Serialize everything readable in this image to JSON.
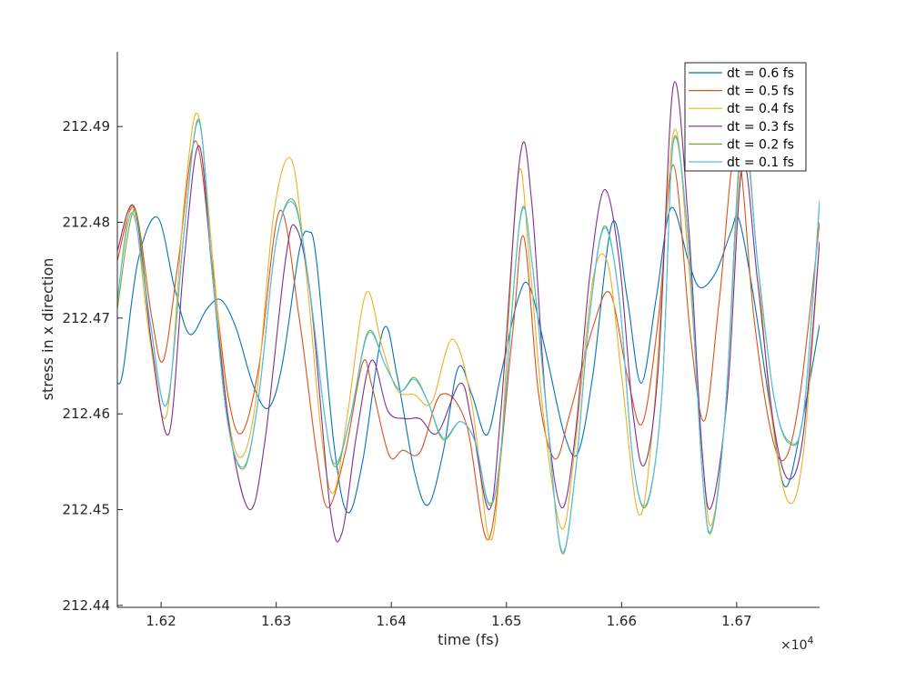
{
  "chart_data": {
    "type": "line",
    "title": "",
    "xlabel": "time (fs)",
    "ylabel": "stress in x direction",
    "xlim": [
      16162,
      16772
    ],
    "ylim": [
      212.4398,
      212.4978
    ],
    "x_ticks": [
      16200,
      16300,
      16400,
      16500,
      16600,
      16700
    ],
    "x_tick_labels": [
      "1.62",
      "1.63",
      "1.64",
      "1.65",
      "1.66",
      "1.67"
    ],
    "x_exponent_label": "×10",
    "x_exponent_power": "4",
    "y_ticks": [
      212.44,
      212.45,
      212.46,
      212.47,
      212.48,
      212.49
    ],
    "y_tick_labels": [
      "212.44",
      "212.45",
      "212.46",
      "212.47",
      "212.48",
      "212.49"
    ],
    "grid": false,
    "legend_position": "top-right",
    "series": [
      {
        "name": "dt = 0.6 fs",
        "color": "#0072BD",
        "points": [
          [
            16162,
            212.4632
          ],
          [
            16167,
            212.4645
          ],
          [
            16180,
            212.476
          ],
          [
            16197,
            212.4805
          ],
          [
            16212,
            212.473
          ],
          [
            16225,
            212.4683
          ],
          [
            16240,
            212.471
          ],
          [
            16252,
            212.4719
          ],
          [
            16265,
            212.469
          ],
          [
            16280,
            212.463
          ],
          [
            16293,
            212.4606
          ],
          [
            16305,
            212.465
          ],
          [
            16320,
            212.477
          ],
          [
            16328,
            212.479
          ],
          [
            16335,
            212.476
          ],
          [
            16350,
            212.457
          ],
          [
            16362,
            212.4497
          ],
          [
            16375,
            212.455
          ],
          [
            16393,
            212.4688
          ],
          [
            16405,
            212.464
          ],
          [
            16420,
            212.454
          ],
          [
            16432,
            212.4505
          ],
          [
            16445,
            212.456
          ],
          [
            16458,
            212.4648
          ],
          [
            16470,
            212.462
          ],
          [
            16483,
            212.4578
          ],
          [
            16495,
            212.464
          ],
          [
            16510,
            212.472
          ],
          [
            16520,
            212.4733
          ],
          [
            16535,
            212.466
          ],
          [
            16550,
            212.458
          ],
          [
            16562,
            212.4559
          ],
          [
            16575,
            212.464
          ],
          [
            16592,
            212.48
          ],
          [
            16605,
            212.472
          ],
          [
            16617,
            212.4632
          ],
          [
            16630,
            212.472
          ],
          [
            16643,
            212.4815
          ],
          [
            16658,
            212.476
          ],
          [
            16668,
            212.4732
          ],
          [
            16682,
            212.4748
          ],
          [
            16695,
            212.479
          ],
          [
            16702,
            212.4803
          ],
          [
            16715,
            212.472
          ],
          [
            16730,
            212.46
          ],
          [
            16742,
            212.4524
          ],
          [
            16755,
            212.458
          ],
          [
            16772,
            212.4693
          ]
        ]
      },
      {
        "name": "dt = 0.5 fs",
        "color": "#D95319",
        "points": [
          [
            16162,
            212.476
          ],
          [
            16177,
            212.4815
          ],
          [
            16192,
            212.47
          ],
          [
            16202,
            212.4656
          ],
          [
            16215,
            212.476
          ],
          [
            16230,
            212.4885
          ],
          [
            16245,
            212.475
          ],
          [
            16258,
            212.462
          ],
          [
            16270,
            212.458
          ],
          [
            16285,
            212.465
          ],
          [
            16303,
            212.4812
          ],
          [
            16320,
            212.47
          ],
          [
            16335,
            212.456
          ],
          [
            16345,
            212.4502
          ],
          [
            16360,
            212.456
          ],
          [
            16375,
            212.4653
          ],
          [
            16383,
            212.463
          ],
          [
            16398,
            212.4557
          ],
          [
            16410,
            212.4562
          ],
          [
            16425,
            212.456
          ],
          [
            16443,
            212.462
          ],
          [
            16465,
            212.459
          ],
          [
            16485,
            212.447
          ],
          [
            16505,
            212.468
          ],
          [
            16515,
            212.4785
          ],
          [
            16528,
            212.462
          ],
          [
            16542,
            212.4553
          ],
          [
            16555,
            212.46
          ],
          [
            16575,
            212.469
          ],
          [
            16590,
            212.4726
          ],
          [
            16605,
            212.464
          ],
          [
            16618,
            212.459
          ],
          [
            16632,
            212.47
          ],
          [
            16645,
            212.486
          ],
          [
            16660,
            212.468
          ],
          [
            16672,
            212.4593
          ],
          [
            16685,
            212.472
          ],
          [
            16700,
            212.488
          ],
          [
            16715,
            212.47
          ],
          [
            16730,
            212.458
          ],
          [
            16742,
            212.4553
          ],
          [
            16755,
            212.462
          ],
          [
            16772,
            212.48
          ]
        ]
      },
      {
        "name": "dt = 0.4 fs",
        "color": "#EDB120",
        "points": [
          [
            16162,
            212.4718
          ],
          [
            16175,
            212.4817
          ],
          [
            16190,
            212.468
          ],
          [
            16205,
            212.46
          ],
          [
            16220,
            212.482
          ],
          [
            16232,
            212.4913
          ],
          [
            16245,
            212.476
          ],
          [
            16258,
            212.46
          ],
          [
            16270,
            212.4555
          ],
          [
            16283,
            212.462
          ],
          [
            16298,
            212.481
          ],
          [
            16313,
            212.4866
          ],
          [
            16325,
            212.476
          ],
          [
            16340,
            212.457
          ],
          [
            16350,
            212.4518
          ],
          [
            16362,
            212.46
          ],
          [
            16378,
            212.4726
          ],
          [
            16392,
            212.467
          ],
          [
            16405,
            212.4625
          ],
          [
            16420,
            212.462
          ],
          [
            16435,
            212.4612
          ],
          [
            16453,
            212.4678
          ],
          [
            16470,
            212.461
          ],
          [
            16485,
            212.447
          ],
          [
            16495,
            212.4555
          ],
          [
            16510,
            212.4848
          ],
          [
            16520,
            212.476
          ],
          [
            16532,
            212.46
          ],
          [
            16548,
            212.448
          ],
          [
            16560,
            212.457
          ],
          [
            16575,
            212.474
          ],
          [
            16588,
            212.4757
          ],
          [
            16600,
            212.464
          ],
          [
            16615,
            212.4495
          ],
          [
            16628,
            212.46
          ],
          [
            16645,
            212.4893
          ],
          [
            16658,
            212.476
          ],
          [
            16670,
            212.456
          ],
          [
            16678,
            212.4484
          ],
          [
            16690,
            212.46
          ],
          [
            16705,
            212.488
          ],
          [
            16718,
            212.476
          ],
          [
            16730,
            212.46
          ],
          [
            16745,
            212.4508
          ],
          [
            16758,
            212.456
          ],
          [
            16772,
            212.478
          ]
        ]
      },
      {
        "name": "dt = 0.3 fs",
        "color": "#7E2F8E",
        "points": [
          [
            16162,
            212.477
          ],
          [
            16177,
            212.4815
          ],
          [
            16192,
            212.467
          ],
          [
            16207,
            212.458
          ],
          [
            16220,
            212.476
          ],
          [
            16233,
            212.488
          ],
          [
            16245,
            212.474
          ],
          [
            16260,
            212.458
          ],
          [
            16277,
            212.45
          ],
          [
            16290,
            212.457
          ],
          [
            16308,
            212.476
          ],
          [
            16317,
            212.4795
          ],
          [
            16330,
            212.472
          ],
          [
            16347,
            212.45
          ],
          [
            16357,
            212.4475
          ],
          [
            16370,
            212.458
          ],
          [
            16383,
            212.4656
          ],
          [
            16397,
            212.4603
          ],
          [
            16412,
            212.4595
          ],
          [
            16425,
            212.4595
          ],
          [
            16440,
            212.458
          ],
          [
            16460,
            212.4632
          ],
          [
            16470,
            212.459
          ],
          [
            16485,
            212.45
          ],
          [
            16495,
            212.46
          ],
          [
            16512,
            212.487
          ],
          [
            16522,
            212.482
          ],
          [
            16535,
            212.46
          ],
          [
            16548,
            212.4502
          ],
          [
            16560,
            212.458
          ],
          [
            16572,
            212.474
          ],
          [
            16585,
            212.4834
          ],
          [
            16598,
            212.476
          ],
          [
            16610,
            212.46
          ],
          [
            16620,
            212.4547
          ],
          [
            16632,
            212.465
          ],
          [
            16645,
            212.4943
          ],
          [
            16658,
            212.48
          ],
          [
            16670,
            212.456
          ],
          [
            16678,
            212.4503
          ],
          [
            16692,
            212.462
          ],
          [
            16705,
            212.486
          ],
          [
            16718,
            212.474
          ],
          [
            16732,
            212.459
          ],
          [
            16745,
            212.4532
          ],
          [
            16758,
            212.458
          ],
          [
            16772,
            212.478
          ]
        ]
      },
      {
        "name": "dt = 0.2 fs",
        "color": "#77AC30",
        "points": [
          [
            16162,
            212.471
          ],
          [
            16177,
            212.4813
          ],
          [
            16190,
            212.47
          ],
          [
            16205,
            212.461
          ],
          [
            16220,
            212.479
          ],
          [
            16233,
            212.4907
          ],
          [
            16245,
            212.474
          ],
          [
            16258,
            212.459
          ],
          [
            16272,
            212.4543
          ],
          [
            16285,
            212.462
          ],
          [
            16300,
            212.478
          ],
          [
            16315,
            212.4823
          ],
          [
            16328,
            212.474
          ],
          [
            16343,
            212.459
          ],
          [
            16352,
            212.4545
          ],
          [
            16365,
            212.46
          ],
          [
            16380,
            212.4686
          ],
          [
            16395,
            212.465
          ],
          [
            16408,
            212.4624
          ],
          [
            16420,
            212.4638
          ],
          [
            16432,
            212.4612
          ],
          [
            16445,
            212.4573
          ],
          [
            16460,
            212.4592
          ],
          [
            16473,
            212.457
          ],
          [
            16485,
            212.4505
          ],
          [
            16495,
            212.456
          ],
          [
            16512,
            212.4805
          ],
          [
            16522,
            212.476
          ],
          [
            16535,
            212.46
          ],
          [
            16548,
            212.4455
          ],
          [
            16560,
            212.454
          ],
          [
            16572,
            212.47
          ],
          [
            16585,
            212.4796
          ],
          [
            16598,
            212.472
          ],
          [
            16610,
            212.455
          ],
          [
            16622,
            212.4505
          ],
          [
            16635,
            212.462
          ],
          [
            16645,
            212.4885
          ],
          [
            16658,
            212.478
          ],
          [
            16670,
            212.454
          ],
          [
            16678,
            212.4477
          ],
          [
            16690,
            212.46
          ],
          [
            16705,
            212.49
          ],
          [
            16718,
            212.476
          ],
          [
            16732,
            212.462
          ],
          [
            16745,
            212.457
          ],
          [
            16758,
            212.46
          ],
          [
            16772,
            212.4823
          ]
        ]
      },
      {
        "name": "dt = 0.1 fs",
        "color": "#4DBEEE",
        "points": [
          [
            16162,
            212.472
          ],
          [
            16175,
            212.481
          ],
          [
            16190,
            212.47
          ],
          [
            16205,
            212.461
          ],
          [
            16220,
            212.479
          ],
          [
            16233,
            212.4905
          ],
          [
            16245,
            212.474
          ],
          [
            16258,
            212.459
          ],
          [
            16272,
            212.4545
          ],
          [
            16285,
            212.462
          ],
          [
            16300,
            212.478
          ],
          [
            16315,
            212.482
          ],
          [
            16328,
            212.474
          ],
          [
            16343,
            212.459
          ],
          [
            16352,
            212.4548
          ],
          [
            16365,
            212.46
          ],
          [
            16380,
            212.4684
          ],
          [
            16395,
            212.465
          ],
          [
            16408,
            212.4624
          ],
          [
            16420,
            212.4636
          ],
          [
            16432,
            212.4612
          ],
          [
            16445,
            212.4575
          ],
          [
            16460,
            212.4592
          ],
          [
            16473,
            212.457
          ],
          [
            16485,
            212.4507
          ],
          [
            16495,
            212.456
          ],
          [
            16512,
            212.4803
          ],
          [
            16522,
            212.476
          ],
          [
            16535,
            212.46
          ],
          [
            16548,
            212.4457
          ],
          [
            16560,
            212.454
          ],
          [
            16572,
            212.47
          ],
          [
            16585,
            212.4794
          ],
          [
            16598,
            212.472
          ],
          [
            16610,
            212.455
          ],
          [
            16622,
            212.4507
          ],
          [
            16635,
            212.462
          ],
          [
            16645,
            212.4883
          ],
          [
            16658,
            212.478
          ],
          [
            16670,
            212.454
          ],
          [
            16678,
            212.4479
          ],
          [
            16690,
            212.46
          ],
          [
            16705,
            212.4898
          ],
          [
            16718,
            212.476
          ],
          [
            16732,
            212.462
          ],
          [
            16745,
            212.4572
          ],
          [
            16758,
            212.46
          ],
          [
            16772,
            212.482
          ]
        ]
      }
    ]
  }
}
